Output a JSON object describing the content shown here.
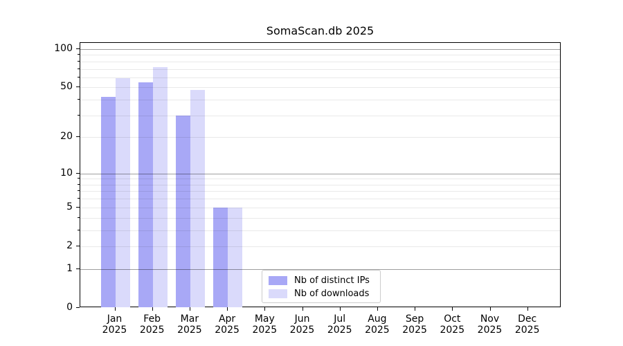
{
  "chart_data": {
    "type": "bar",
    "title": "SomaScan.db 2025",
    "categories": [
      "Jan 2025",
      "Feb 2025",
      "Mar 2025",
      "Apr 2025",
      "May 2025",
      "Jun 2025",
      "Jul 2025",
      "Aug 2025",
      "Sep 2025",
      "Oct 2025",
      "Nov 2025",
      "Dec 2025"
    ],
    "series": [
      {
        "name": "Nb of distinct IPs",
        "color": "#a8a8f6",
        "values": [
          42,
          55,
          30,
          5,
          0,
          0,
          0,
          0,
          0,
          0,
          0,
          0
        ]
      },
      {
        "name": "Nb of downloads",
        "color": "#dadafb",
        "values": [
          59,
          72,
          48,
          5,
          0,
          0,
          0,
          0,
          0,
          0,
          0,
          0
        ]
      }
    ],
    "xlabel": "",
    "ylabel": "",
    "yscale": "log1p",
    "ylim": [
      0,
      110
    ],
    "yticks": [
      0,
      1,
      2,
      5,
      10,
      20,
      50,
      100
    ],
    "gridlines_major": [
      1,
      10,
      100
    ],
    "gridlines_minor": [
      2,
      3,
      4,
      5,
      6,
      7,
      8,
      9,
      20,
      30,
      40,
      50,
      60,
      70,
      80,
      90
    ],
    "grid": "on",
    "legend_position": "lower center"
  },
  "colors": {
    "spine": "#000000",
    "text": "#000000",
    "major_grid": "rgba(0,0,0,0.38)",
    "minor_grid": "rgba(0,0,0,0.085)",
    "legend_border": "#cccccc",
    "background": "#ffffff"
  }
}
